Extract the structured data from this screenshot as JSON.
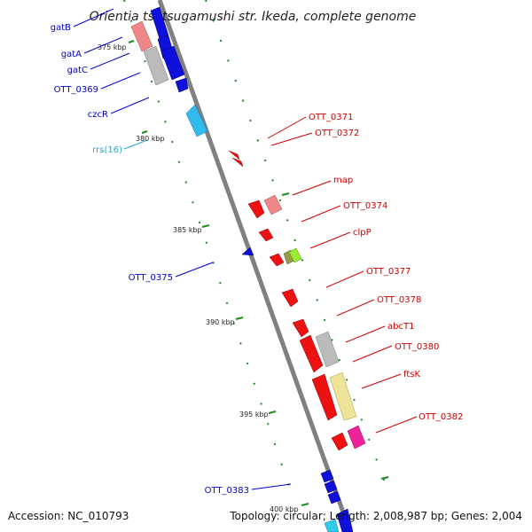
{
  "title": "Orientia tsutsugamushi str. Ikeda, complete genome",
  "footer": {
    "accession": "Accession: NC_010793",
    "summary": "Topology: circular; Length: 2,008,987 bp; Genes: 2,004"
  },
  "colors": {
    "backbone": "#808080",
    "forward_label": "#0000cc",
    "reverse_label": "#cc0000",
    "rrna_label": "#22aacc",
    "tick": "#228822"
  },
  "ticks": [
    "375 kbp",
    "380 kbp",
    "385 kbp",
    "390 kbp",
    "395 kbp",
    "400 kbp"
  ],
  "genes_forward": [
    "gatB",
    "gatA",
    "gatC",
    "OTT_0369",
    "czcR",
    "rrs(16)",
    "OTT_0375",
    "OTT_0383"
  ],
  "genes_reverse": [
    "OTT_0371",
    "OTT_0372",
    "map",
    "OTT_0374",
    "clpP",
    "OTT_0377",
    "OTT_0378",
    "abcT1",
    "OTT_0380",
    "ftsK",
    "OTT_0382"
  ]
}
